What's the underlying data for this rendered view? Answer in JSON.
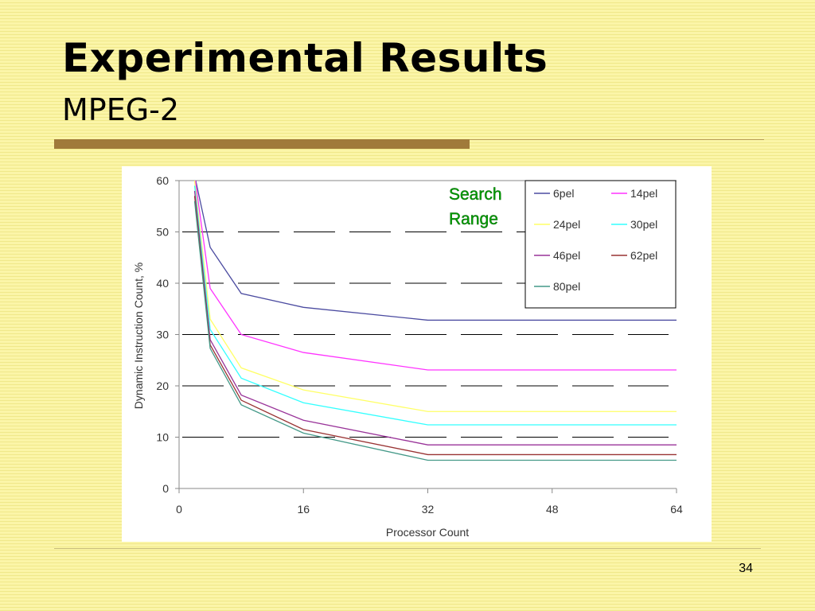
{
  "slide": {
    "title": "Experimental Results",
    "subtitle": "MPEG-2",
    "page_number": "34",
    "accent_color": "#a07a3a",
    "background_color": "#fbf5a8"
  },
  "chart_data": {
    "type": "line",
    "xlabel": "Processor Count",
    "ylabel": "Dynamic Instruction Count, %",
    "xlim": [
      0,
      64
    ],
    "ylim": [
      0,
      60
    ],
    "x_ticks": [
      0,
      16,
      32,
      48,
      64
    ],
    "y_ticks": [
      0,
      10,
      20,
      30,
      40,
      50,
      60
    ],
    "gridlines": "dashed horizontal",
    "annotation": {
      "line1": "Search",
      "line2": "Range",
      "color": "#00a000"
    },
    "legend_position": "top-right",
    "x": [
      2,
      4,
      8,
      16,
      32,
      64
    ],
    "series": [
      {
        "name": "6pel",
        "color": "#4b4ba0",
        "values": [
          61,
          47,
          38,
          35.3,
          32.8,
          32.8
        ]
      },
      {
        "name": "14pel",
        "color": "#ff33ff",
        "values": [
          61,
          39,
          30,
          26.5,
          23.1,
          23.1
        ]
      },
      {
        "name": "24pel",
        "color": "#ffff66",
        "values": [
          60,
          33,
          23.5,
          19.2,
          15,
          15
        ]
      },
      {
        "name": "30pel",
        "color": "#33ffff",
        "values": [
          59,
          31,
          21.5,
          16.7,
          12.4,
          12.4
        ]
      },
      {
        "name": "46pel",
        "color": "#993399",
        "values": [
          58,
          29,
          18.2,
          13.3,
          8.5,
          8.5
        ]
      },
      {
        "name": "62pel",
        "color": "#993333",
        "values": [
          57,
          28,
          17.2,
          11.5,
          6.6,
          6.6
        ]
      },
      {
        "name": "80pel",
        "color": "#449988",
        "values": [
          56,
          27.3,
          16.3,
          10.8,
          5.5,
          5.5
        ]
      }
    ]
  }
}
